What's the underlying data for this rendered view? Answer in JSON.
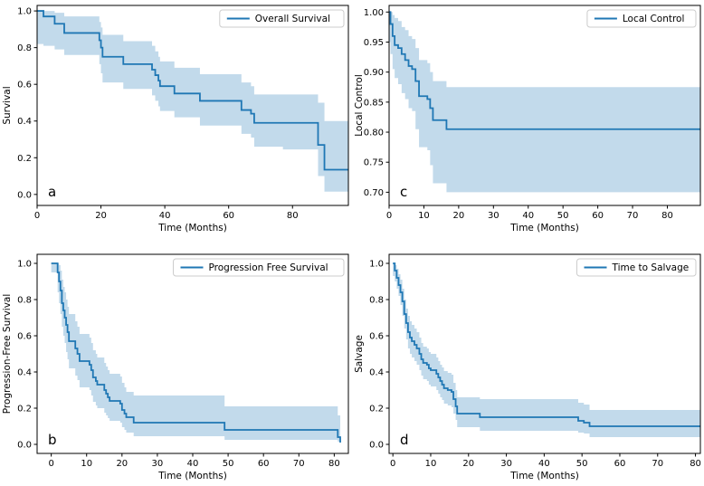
{
  "figure": {
    "background": "#ffffff",
    "line_color": "#1f77b4",
    "band_color": "rgba(31,119,180,0.27)",
    "spine_color": "#000000",
    "legend_border_color": "#cccccc",
    "legend_bg_color": "rgba(255,255,255,0.85)"
  },
  "chart_data": {
    "type": "line",
    "subtype": "kaplan-meier-step-with-confidence-band",
    "layout": "2x2-grid",
    "panels": [
      {
        "letter": "a",
        "legend_label": "Overall Survival",
        "xlabel": "Time (Months)",
        "ylabel": "Survival",
        "xlim": [
          0,
          97.5
        ],
        "ylim": [
          -0.06,
          1.03
        ],
        "xticks": [
          0,
          20,
          40,
          60,
          80
        ],
        "yticks": [
          0.0,
          0.2,
          0.4,
          0.6,
          0.8,
          1.0
        ],
        "ytick_decimals": 1,
        "steps": [
          [
            0,
            1.0
          ],
          [
            2,
            0.97
          ],
          [
            5.5,
            0.93
          ],
          [
            8.5,
            0.88
          ],
          [
            19.5,
            0.84
          ],
          [
            20,
            0.8
          ],
          [
            20.5,
            0.75
          ],
          [
            27,
            0.71
          ],
          [
            36,
            0.68
          ],
          [
            37,
            0.65
          ],
          [
            38,
            0.62
          ],
          [
            38.5,
            0.59
          ],
          [
            43,
            0.55
          ],
          [
            51,
            0.51
          ],
          [
            64,
            0.46
          ],
          [
            67,
            0.44
          ],
          [
            68,
            0.39
          ],
          [
            88,
            0.27
          ],
          [
            90,
            0.135
          ],
          [
            97.5,
            0.135
          ]
        ],
        "band": [
          [
            0,
            0.82,
            1.0
          ],
          [
            2,
            0.81,
            1.0
          ],
          [
            5.5,
            0.79,
            0.99
          ],
          [
            8.5,
            0.76,
            0.97
          ],
          [
            19.5,
            0.71,
            0.94
          ],
          [
            20,
            0.66,
            0.91
          ],
          [
            20.5,
            0.61,
            0.87
          ],
          [
            27,
            0.575,
            0.835
          ],
          [
            36,
            0.54,
            0.81
          ],
          [
            37,
            0.51,
            0.78
          ],
          [
            38,
            0.48,
            0.75
          ],
          [
            38.5,
            0.455,
            0.725
          ],
          [
            43,
            0.42,
            0.69
          ],
          [
            51,
            0.375,
            0.655
          ],
          [
            64,
            0.33,
            0.61
          ],
          [
            67,
            0.31,
            0.59
          ],
          [
            68,
            0.26,
            0.545
          ],
          [
            77,
            0.245,
            0.545
          ],
          [
            88,
            0.1,
            0.5
          ],
          [
            90,
            0.015,
            0.4
          ],
          [
            97.5,
            0.015,
            0.4
          ]
        ]
      },
      {
        "letter": "c",
        "legend_label": "Local Control",
        "xlabel": "Time (Months)",
        "ylabel": "Local Control",
        "xlim": [
          0,
          89.5
        ],
        "ylim": [
          0.678,
          1.011
        ],
        "xticks": [
          0,
          10,
          20,
          30,
          40,
          50,
          60,
          70,
          80
        ],
        "yticks": [
          0.7,
          0.75,
          0.8,
          0.85,
          0.9,
          0.95,
          1.0
        ],
        "ytick_decimals": 2,
        "steps": [
          [
            0,
            1.0
          ],
          [
            0.4,
            0.98
          ],
          [
            1,
            0.96
          ],
          [
            1.6,
            0.945
          ],
          [
            2.6,
            0.94
          ],
          [
            3.6,
            0.93
          ],
          [
            4.6,
            0.92
          ],
          [
            5.6,
            0.91
          ],
          [
            6.6,
            0.905
          ],
          [
            7.6,
            0.885
          ],
          [
            8.6,
            0.86
          ],
          [
            11,
            0.855
          ],
          [
            11.8,
            0.84
          ],
          [
            12.6,
            0.82
          ],
          [
            16.5,
            0.805
          ],
          [
            89.5,
            0.805
          ]
        ],
        "band": [
          [
            0,
            0.95,
            1.0
          ],
          [
            0.4,
            0.93,
            1.0
          ],
          [
            1,
            0.905,
            0.995
          ],
          [
            1.6,
            0.89,
            0.99
          ],
          [
            2.6,
            0.88,
            0.985
          ],
          [
            3.6,
            0.865,
            0.975
          ],
          [
            4.6,
            0.855,
            0.97
          ],
          [
            5.6,
            0.84,
            0.96
          ],
          [
            6.6,
            0.835,
            0.955
          ],
          [
            7.6,
            0.805,
            0.94
          ],
          [
            8.6,
            0.775,
            0.92
          ],
          [
            11,
            0.77,
            0.915
          ],
          [
            11.8,
            0.745,
            0.9
          ],
          [
            12.6,
            0.715,
            0.885
          ],
          [
            16.5,
            0.7,
            0.875
          ],
          [
            89.5,
            0.7,
            0.875
          ]
        ]
      },
      {
        "letter": "b",
        "legend_label": "Progression Free Survival",
        "xlabel": "Time (Months)",
        "ylabel": "Progression-Free Survival",
        "xlim": [
          -4,
          84
        ],
        "ylim": [
          -0.05,
          1.05
        ],
        "xticks": [
          0,
          10,
          20,
          30,
          40,
          50,
          60,
          70,
          80
        ],
        "yticks": [
          0.0,
          0.2,
          0.4,
          0.6,
          0.8,
          1.0
        ],
        "ytick_decimals": 1,
        "steps": [
          [
            0,
            1.0
          ],
          [
            1.8,
            0.95
          ],
          [
            2.2,
            0.9
          ],
          [
            2.6,
            0.85
          ],
          [
            3,
            0.78
          ],
          [
            3.4,
            0.74
          ],
          [
            3.8,
            0.7
          ],
          [
            4.2,
            0.66
          ],
          [
            4.6,
            0.62
          ],
          [
            5,
            0.57
          ],
          [
            6.8,
            0.53
          ],
          [
            7.4,
            0.5
          ],
          [
            8,
            0.46
          ],
          [
            10.8,
            0.44
          ],
          [
            11.3,
            0.41
          ],
          [
            11.8,
            0.37
          ],
          [
            12.6,
            0.35
          ],
          [
            13,
            0.33
          ],
          [
            15,
            0.3
          ],
          [
            15.5,
            0.28
          ],
          [
            16,
            0.26
          ],
          [
            16.5,
            0.24
          ],
          [
            19.5,
            0.225
          ],
          [
            20,
            0.19
          ],
          [
            20.7,
            0.17
          ],
          [
            21.2,
            0.15
          ],
          [
            23.3,
            0.12
          ],
          [
            49,
            0.08
          ],
          [
            81,
            0.04
          ],
          [
            81.7,
            0.01
          ]
        ],
        "band": [
          [
            0,
            0.95,
            1.0
          ],
          [
            1.8,
            0.84,
            1.0
          ],
          [
            2.2,
            0.78,
            0.99
          ],
          [
            2.6,
            0.72,
            0.96
          ],
          [
            3,
            0.65,
            0.91
          ],
          [
            3.4,
            0.6,
            0.87
          ],
          [
            3.8,
            0.56,
            0.84
          ],
          [
            4.2,
            0.51,
            0.8
          ],
          [
            4.6,
            0.47,
            0.76
          ],
          [
            5,
            0.42,
            0.72
          ],
          [
            6.8,
            0.38,
            0.68
          ],
          [
            7.4,
            0.355,
            0.65
          ],
          [
            8,
            0.315,
            0.61
          ],
          [
            10.8,
            0.3,
            0.59
          ],
          [
            11.3,
            0.27,
            0.56
          ],
          [
            11.8,
            0.235,
            0.52
          ],
          [
            12.6,
            0.215,
            0.5
          ],
          [
            13,
            0.2,
            0.48
          ],
          [
            15,
            0.175,
            0.45
          ],
          [
            15.5,
            0.16,
            0.43
          ],
          [
            16,
            0.145,
            0.41
          ],
          [
            16.5,
            0.13,
            0.39
          ],
          [
            19.5,
            0.12,
            0.375
          ],
          [
            20,
            0.095,
            0.34
          ],
          [
            20.7,
            0.08,
            0.315
          ],
          [
            21.2,
            0.065,
            0.29
          ],
          [
            23.3,
            0.045,
            0.27
          ],
          [
            49,
            0.025,
            0.21
          ],
          [
            81,
            0.015,
            0.16
          ],
          [
            81.7,
            0.0,
            0.09
          ]
        ]
      },
      {
        "letter": "d",
        "legend_label": "Time to Salvage",
        "xlabel": "Time (Months)",
        "ylabel": "Salvage",
        "xlim": [
          -1,
          81.3
        ],
        "ylim": [
          -0.05,
          1.05
        ],
        "xticks": [
          0,
          10,
          20,
          30,
          40,
          50,
          60,
          70,
          80
        ],
        "yticks": [
          0.0,
          0.2,
          0.4,
          0.6,
          0.8,
          1.0
        ],
        "ytick_decimals": 1,
        "steps": [
          [
            0,
            1.0
          ],
          [
            0.5,
            0.96
          ],
          [
            1,
            0.92
          ],
          [
            1.5,
            0.88
          ],
          [
            2,
            0.84
          ],
          [
            2.5,
            0.79
          ],
          [
            3,
            0.72
          ],
          [
            3.5,
            0.67
          ],
          [
            4,
            0.62
          ],
          [
            4.5,
            0.59
          ],
          [
            5,
            0.57
          ],
          [
            5.7,
            0.55
          ],
          [
            6.3,
            0.53
          ],
          [
            7,
            0.5
          ],
          [
            7.5,
            0.47
          ],
          [
            8,
            0.45
          ],
          [
            9,
            0.44
          ],
          [
            9.5,
            0.42
          ],
          [
            10,
            0.41
          ],
          [
            11.5,
            0.39
          ],
          [
            12,
            0.37
          ],
          [
            12.5,
            0.35
          ],
          [
            13,
            0.33
          ],
          [
            13.5,
            0.31
          ],
          [
            14.5,
            0.3
          ],
          [
            15.5,
            0.29
          ],
          [
            16,
            0.25
          ],
          [
            16.6,
            0.21
          ],
          [
            17,
            0.17
          ],
          [
            23,
            0.15
          ],
          [
            49,
            0.13
          ],
          [
            50.5,
            0.12
          ],
          [
            52,
            0.1
          ],
          [
            81.3,
            0.1
          ]
        ],
        "band": [
          [
            0,
            0.93,
            1.0
          ],
          [
            0.5,
            0.9,
            0.99
          ],
          [
            1,
            0.86,
            0.97
          ],
          [
            1.5,
            0.82,
            0.94
          ],
          [
            2,
            0.77,
            0.91
          ],
          [
            2.5,
            0.71,
            0.86
          ],
          [
            3,
            0.64,
            0.8
          ],
          [
            3.5,
            0.58,
            0.75
          ],
          [
            4,
            0.53,
            0.71
          ],
          [
            4.5,
            0.5,
            0.68
          ],
          [
            5,
            0.48,
            0.66
          ],
          [
            5.7,
            0.46,
            0.64
          ],
          [
            6.3,
            0.44,
            0.62
          ],
          [
            7,
            0.41,
            0.59
          ],
          [
            7.5,
            0.38,
            0.56
          ],
          [
            8,
            0.36,
            0.54
          ],
          [
            9,
            0.35,
            0.53
          ],
          [
            9.5,
            0.33,
            0.51
          ],
          [
            10,
            0.32,
            0.5
          ],
          [
            11.5,
            0.3,
            0.48
          ],
          [
            12,
            0.28,
            0.46
          ],
          [
            12.5,
            0.26,
            0.44
          ],
          [
            13,
            0.245,
            0.425
          ],
          [
            13.5,
            0.225,
            0.405
          ],
          [
            14.5,
            0.215,
            0.395
          ],
          [
            15.5,
            0.205,
            0.385
          ],
          [
            16,
            0.17,
            0.34
          ],
          [
            16.6,
            0.135,
            0.3
          ],
          [
            17,
            0.095,
            0.26
          ],
          [
            23,
            0.075,
            0.25
          ],
          [
            49,
            0.065,
            0.23
          ],
          [
            50.5,
            0.06,
            0.22
          ],
          [
            52,
            0.04,
            0.19
          ],
          [
            81.3,
            0.04,
            0.19
          ]
        ]
      }
    ]
  }
}
